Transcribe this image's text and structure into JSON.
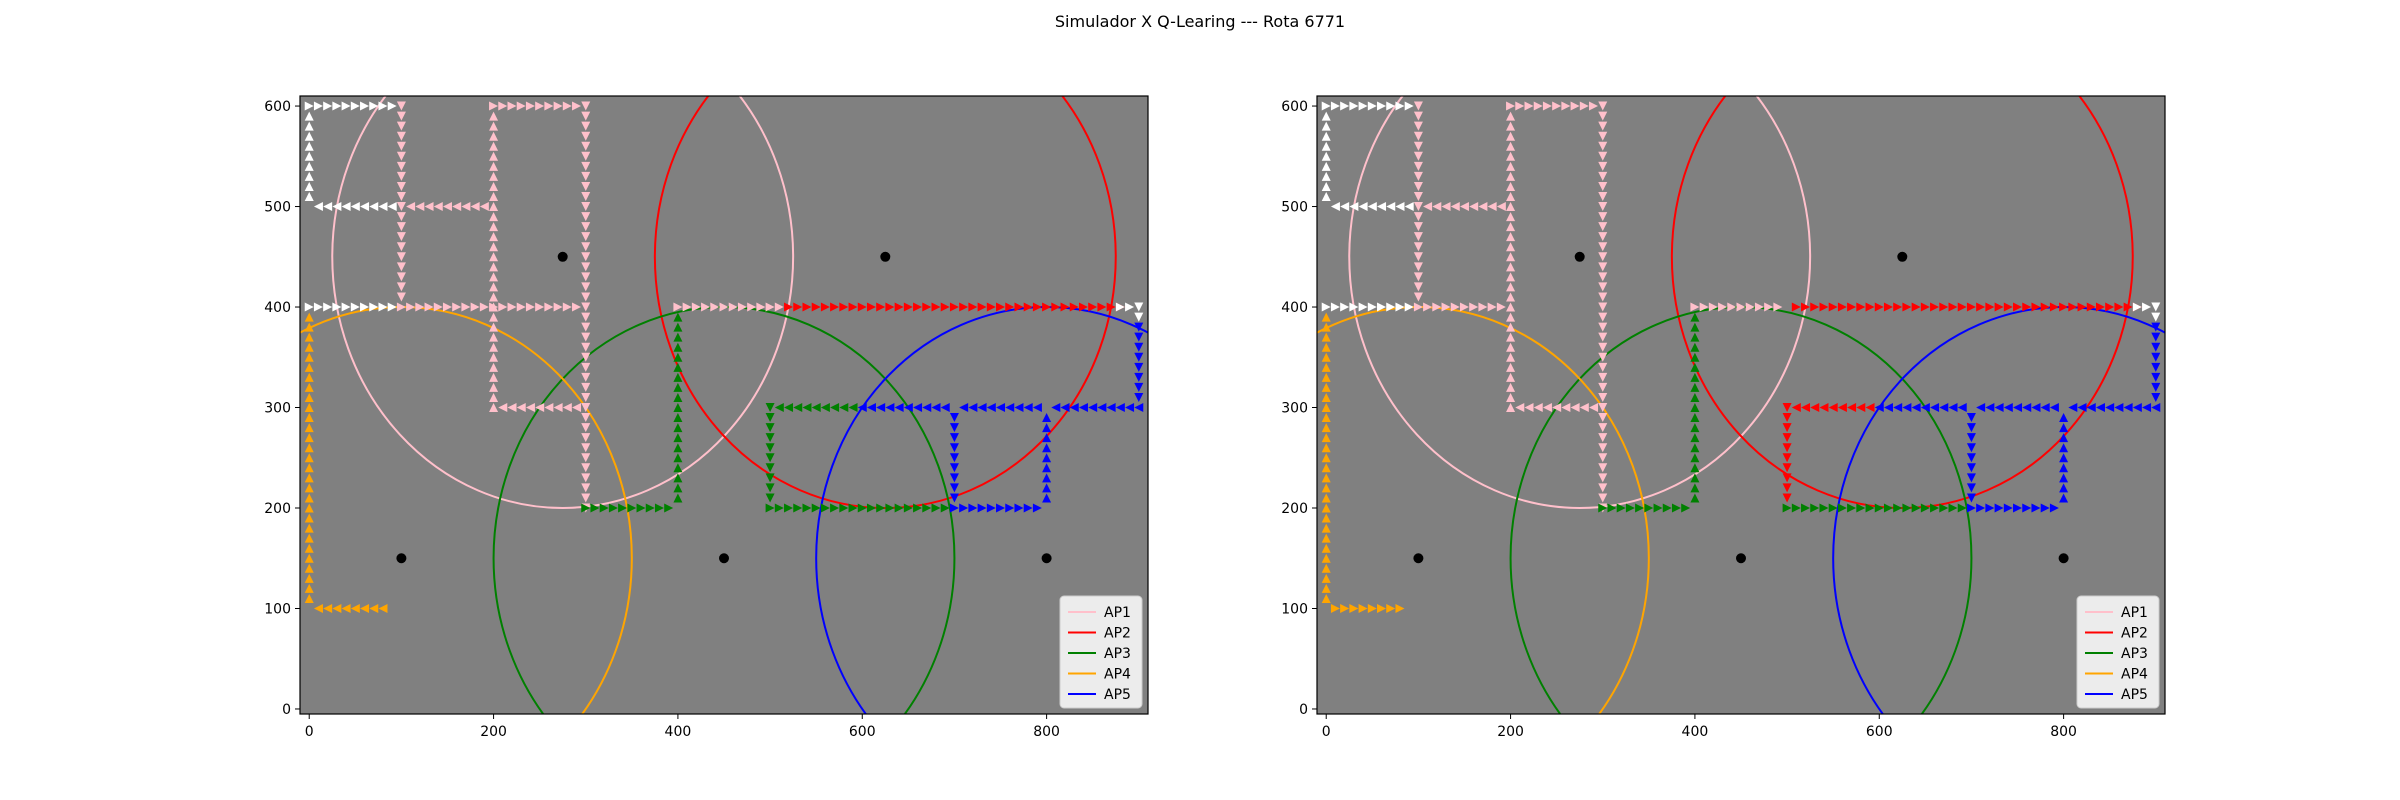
{
  "figure": {
    "title": "Simulador X Q-Learing --- Rota 6771"
  },
  "chart_data": [
    {
      "type": "scatter",
      "title": "",
      "xlabel": "",
      "ylabel": "",
      "xlim": [
        -10,
        910
      ],
      "ylim": [
        -5,
        610
      ],
      "xticks": [
        0,
        200,
        400,
        600,
        800
      ],
      "yticks": [
        0,
        100,
        200,
        300,
        400,
        500,
        600
      ],
      "background": "#808080",
      "grid": false,
      "legend_position": "lower-right",
      "access_points": [
        {
          "name": "AP1",
          "color": "#ffc0cb",
          "center": [
            275,
            450
          ],
          "radius": 250
        },
        {
          "name": "AP2",
          "color": "#ff0000",
          "center": [
            625,
            450
          ],
          "radius": 250
        },
        {
          "name": "AP3",
          "color": "#008000",
          "center": [
            450,
            150
          ],
          "radius": 250
        },
        {
          "name": "AP4",
          "color": "#ffa500",
          "center": [
            100,
            150
          ],
          "radius": 250
        },
        {
          "name": "AP5",
          "color": "#0000ff",
          "center": [
            800,
            150
          ],
          "radius": 250
        }
      ],
      "markers": [
        {
          "color": "#ffffff",
          "dir": "right",
          "from": [
            0,
            600
          ],
          "to": [
            90,
            600
          ]
        },
        {
          "color": "#ffffff",
          "dir": "up",
          "from": [
            0,
            510
          ],
          "to": [
            0,
            590
          ]
        },
        {
          "color": "#ffffff",
          "dir": "left",
          "from": [
            10,
            500
          ],
          "to": [
            90,
            500
          ]
        },
        {
          "color": "#ffffff",
          "dir": "right",
          "from": [
            0,
            400
          ],
          "to": [
            90,
            400
          ]
        },
        {
          "color": "#ffc0cb",
          "dir": "down",
          "from": [
            100,
            410
          ],
          "to": [
            100,
            600
          ]
        },
        {
          "color": "#ffc0cb",
          "dir": "left",
          "from": [
            110,
            500
          ],
          "to": [
            190,
            500
          ]
        },
        {
          "color": "#ffc0cb",
          "dir": "right",
          "from": [
            100,
            400
          ],
          "to": [
            290,
            400
          ]
        },
        {
          "color": "#ffc0cb",
          "dir": "up",
          "from": [
            200,
            300
          ],
          "to": [
            200,
            590
          ]
        },
        {
          "color": "#ffc0cb",
          "dir": "right",
          "from": [
            200,
            600
          ],
          "to": [
            290,
            600
          ]
        },
        {
          "color": "#ffc0cb",
          "dir": "down",
          "from": [
            300,
            200
          ],
          "to": [
            300,
            600
          ]
        },
        {
          "color": "#ffc0cb",
          "dir": "left",
          "from": [
            210,
            300
          ],
          "to": [
            290,
            300
          ]
        },
        {
          "color": "#008000",
          "dir": "right",
          "from": [
            300,
            200
          ],
          "to": [
            390,
            200
          ]
        },
        {
          "color": "#008000",
          "dir": "up",
          "from": [
            400,
            210
          ],
          "to": [
            400,
            390
          ]
        },
        {
          "color": "#ffc0cb",
          "dir": "right",
          "from": [
            400,
            400
          ],
          "to": [
            510,
            400
          ]
        },
        {
          "color": "#ff0000",
          "dir": "right",
          "from": [
            520,
            400
          ],
          "to": [
            880,
            400
          ]
        },
        {
          "color": "#ffffff",
          "dir": "right",
          "from": [
            880,
            400
          ],
          "to": [
            890,
            400
          ]
        },
        {
          "color": "#ffffff",
          "dir": "down",
          "from": [
            900,
            390
          ],
          "to": [
            900,
            400
          ]
        },
        {
          "color": "#0000ff",
          "dir": "down",
          "from": [
            900,
            310
          ],
          "to": [
            900,
            380
          ]
        },
        {
          "color": "#0000ff",
          "dir": "left",
          "from": [
            810,
            300
          ],
          "to": [
            900,
            300
          ]
        },
        {
          "color": "#0000ff",
          "dir": "left",
          "from": [
            710,
            300
          ],
          "to": [
            790,
            300
          ]
        },
        {
          "color": "#0000ff",
          "dir": "left",
          "from": [
            600,
            300
          ],
          "to": [
            690,
            300
          ]
        },
        {
          "color": "#008000",
          "dir": "left",
          "from": [
            510,
            300
          ],
          "to": [
            590,
            300
          ]
        },
        {
          "color": "#008000",
          "dir": "down",
          "from": [
            500,
            210
          ],
          "to": [
            500,
            300
          ]
        },
        {
          "color": "#008000",
          "dir": "right",
          "from": [
            500,
            200
          ],
          "to": [
            690,
            200
          ]
        },
        {
          "color": "#0000ff",
          "dir": "right",
          "from": [
            700,
            200
          ],
          "to": [
            790,
            200
          ]
        },
        {
          "color": "#0000ff",
          "dir": "up",
          "from": [
            800,
            210
          ],
          "to": [
            800,
            290
          ]
        },
        {
          "color": "#0000ff",
          "dir": "down",
          "from": [
            700,
            210
          ],
          "to": [
            700,
            290
          ]
        },
        {
          "color": "#ffa500",
          "dir": "up",
          "from": [
            0,
            110
          ],
          "to": [
            0,
            390
          ]
        },
        {
          "color": "#ffa500",
          "dir": "left",
          "from": [
            10,
            100
          ],
          "to": [
            80,
            100
          ]
        }
      ]
    },
    {
      "type": "scatter",
      "title": "",
      "xlabel": "",
      "ylabel": "",
      "xlim": [
        -10,
        910
      ],
      "ylim": [
        -5,
        610
      ],
      "xticks": [
        0,
        200,
        400,
        600,
        800
      ],
      "yticks": [
        0,
        100,
        200,
        300,
        400,
        500,
        600
      ],
      "background": "#808080",
      "grid": false,
      "legend_position": "lower-right",
      "access_points": [
        {
          "name": "AP1",
          "color": "#ffc0cb",
          "center": [
            275,
            450
          ],
          "radius": 250
        },
        {
          "name": "AP2",
          "color": "#ff0000",
          "center": [
            625,
            450
          ],
          "radius": 250
        },
        {
          "name": "AP3",
          "color": "#008000",
          "center": [
            450,
            150
          ],
          "radius": 250
        },
        {
          "name": "AP4",
          "color": "#ffa500",
          "center": [
            100,
            150
          ],
          "radius": 250
        },
        {
          "name": "AP5",
          "color": "#0000ff",
          "center": [
            800,
            150
          ],
          "radius": 250
        }
      ],
      "markers": [
        {
          "color": "#ffffff",
          "dir": "right",
          "from": [
            0,
            600
          ],
          "to": [
            90,
            600
          ]
        },
        {
          "color": "#ffffff",
          "dir": "up",
          "from": [
            0,
            510
          ],
          "to": [
            0,
            590
          ]
        },
        {
          "color": "#ffffff",
          "dir": "left",
          "from": [
            10,
            500
          ],
          "to": [
            90,
            500
          ]
        },
        {
          "color": "#ffffff",
          "dir": "right",
          "from": [
            0,
            400
          ],
          "to": [
            90,
            400
          ]
        },
        {
          "color": "#ffc0cb",
          "dir": "down",
          "from": [
            100,
            410
          ],
          "to": [
            100,
            600
          ]
        },
        {
          "color": "#ffc0cb",
          "dir": "left",
          "from": [
            110,
            500
          ],
          "to": [
            190,
            500
          ]
        },
        {
          "color": "#ffc0cb",
          "dir": "right",
          "from": [
            100,
            400
          ],
          "to": [
            190,
            400
          ]
        },
        {
          "color": "#ffc0cb",
          "dir": "up",
          "from": [
            200,
            300
          ],
          "to": [
            200,
            590
          ]
        },
        {
          "color": "#ffc0cb",
          "dir": "right",
          "from": [
            200,
            600
          ],
          "to": [
            290,
            600
          ]
        },
        {
          "color": "#ffc0cb",
          "dir": "down",
          "from": [
            300,
            200
          ],
          "to": [
            300,
            600
          ]
        },
        {
          "color": "#ffc0cb",
          "dir": "left",
          "from": [
            210,
            300
          ],
          "to": [
            290,
            300
          ]
        },
        {
          "color": "#008000",
          "dir": "right",
          "from": [
            300,
            200
          ],
          "to": [
            390,
            200
          ]
        },
        {
          "color": "#008000",
          "dir": "up",
          "from": [
            400,
            210
          ],
          "to": [
            400,
            390
          ]
        },
        {
          "color": "#ffc0cb",
          "dir": "right",
          "from": [
            400,
            400
          ],
          "to": [
            490,
            400
          ]
        },
        {
          "color": "#ff0000",
          "dir": "right",
          "from": [
            510,
            400
          ],
          "to": [
            880,
            400
          ]
        },
        {
          "color": "#ffffff",
          "dir": "right",
          "from": [
            880,
            400
          ],
          "to": [
            890,
            400
          ]
        },
        {
          "color": "#ffffff",
          "dir": "down",
          "from": [
            900,
            390
          ],
          "to": [
            900,
            400
          ]
        },
        {
          "color": "#0000ff",
          "dir": "down",
          "from": [
            900,
            310
          ],
          "to": [
            900,
            380
          ]
        },
        {
          "color": "#0000ff",
          "dir": "left",
          "from": [
            810,
            300
          ],
          "to": [
            900,
            300
          ]
        },
        {
          "color": "#0000ff",
          "dir": "left",
          "from": [
            710,
            300
          ],
          "to": [
            790,
            300
          ]
        },
        {
          "color": "#0000ff",
          "dir": "left",
          "from": [
            600,
            300
          ],
          "to": [
            690,
            300
          ]
        },
        {
          "color": "#ff0000",
          "dir": "left",
          "from": [
            510,
            300
          ],
          "to": [
            590,
            300
          ]
        },
        {
          "color": "#ff0000",
          "dir": "down",
          "from": [
            500,
            210
          ],
          "to": [
            500,
            300
          ]
        },
        {
          "color": "#008000",
          "dir": "right",
          "from": [
            500,
            200
          ],
          "to": [
            690,
            200
          ]
        },
        {
          "color": "#0000ff",
          "dir": "right",
          "from": [
            700,
            200
          ],
          "to": [
            790,
            200
          ]
        },
        {
          "color": "#0000ff",
          "dir": "up",
          "from": [
            800,
            210
          ],
          "to": [
            800,
            290
          ]
        },
        {
          "color": "#0000ff",
          "dir": "down",
          "from": [
            700,
            210
          ],
          "to": [
            700,
            290
          ]
        },
        {
          "color": "#ffa500",
          "dir": "up",
          "from": [
            0,
            110
          ],
          "to": [
            0,
            390
          ]
        },
        {
          "color": "#ffa500",
          "dir": "right",
          "from": [
            10,
            100
          ],
          "to": [
            80,
            100
          ]
        }
      ]
    }
  ]
}
